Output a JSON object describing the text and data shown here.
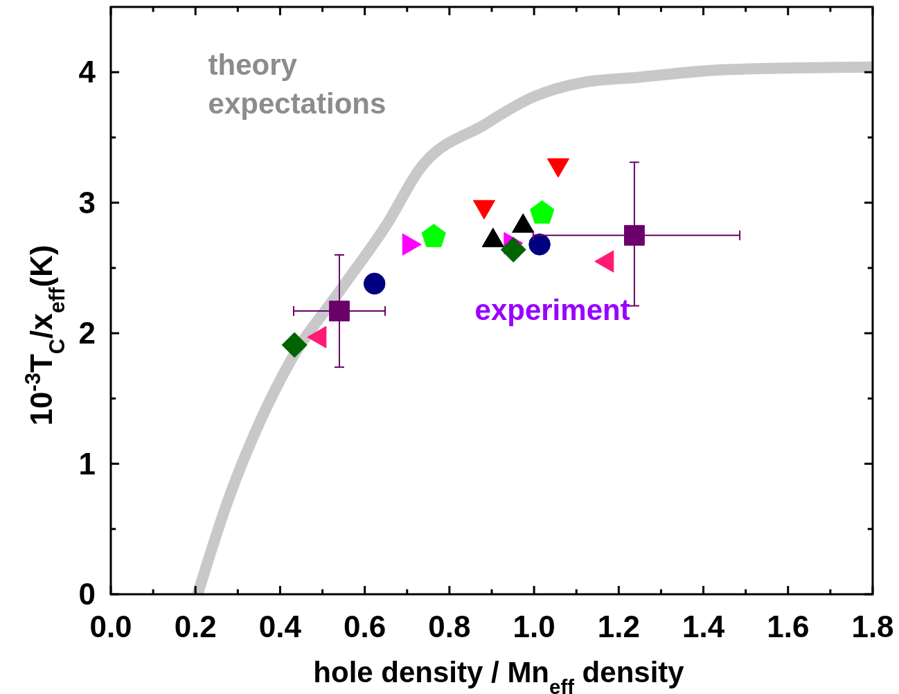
{
  "chart_data": {
    "type": "scatter",
    "xlabel": "hole density / Mn$_{eff}$ density",
    "ylabel": "10$^{-3}$T$_{C}$/x$_{eff}$(K)",
    "xlim": [
      0,
      1.8
    ],
    "ylim": [
      0,
      4.5
    ],
    "xticks": [
      {
        "value": 0,
        "label": "0.0"
      },
      {
        "value": 0.1,
        "label": null
      },
      {
        "value": 0.2,
        "label": "0.2"
      },
      {
        "value": 0.3,
        "label": null
      },
      {
        "value": 0.4,
        "label": "0.4"
      },
      {
        "value": 0.5,
        "label": null
      },
      {
        "value": 0.6,
        "label": "0.6"
      },
      {
        "value": 0.7,
        "label": null
      },
      {
        "value": 0.8,
        "label": "0.8"
      },
      {
        "value": 0.9,
        "label": null
      },
      {
        "value": 1,
        "label": "1.0"
      },
      {
        "value": 1.1,
        "label": null
      },
      {
        "value": 1.2,
        "label": "1.2"
      },
      {
        "value": 1.3,
        "label": null
      },
      {
        "value": 1.4,
        "label": "1.4"
      },
      {
        "value": 1.5,
        "label": null
      },
      {
        "value": 1.6,
        "label": "1.6"
      },
      {
        "value": 1.7,
        "label": null
      },
      {
        "value": 1.8,
        "label": "1.8"
      }
    ],
    "yticks": [
      0,
      {
        "value": 0.5,
        "label": null
      },
      1,
      {
        "value": 1.5,
        "label": null
      },
      2,
      {
        "value": 2.5,
        "label": null
      },
      3,
      {
        "value": 3.5,
        "label": null
      },
      4
    ],
    "grid": false,
    "annotations": [
      "theory\nexpectations",
      "experiment"
    ],
    "series": [
      {
        "type": "line",
        "color": "#c8c8c8",
        "marker": "none",
        "x": [
          0.205,
          0.278,
          0.352,
          0.425,
          0.54,
          0.655,
          0.728,
          0.884,
          0.998,
          1.113,
          1.244,
          1.456,
          1.8
        ],
        "values": [
          0,
          0.73,
          1.32,
          1.79,
          2.32,
          2.85,
          3.25,
          3.6,
          3.81,
          3.92,
          3.96,
          4.02,
          4.04
        ]
      },
      {
        "color": "#006400",
        "marker": "diamond",
        "x": [
          0.434
        ],
        "values": [
          1.91
        ]
      },
      {
        "color": "#ff1a75",
        "marker": "triangle-left",
        "x": [
          0.494
        ],
        "values": [
          1.97
        ]
      },
      {
        "color": "#6b006b",
        "marker": "square",
        "x": [
          0.54
        ],
        "values": [
          2.17
        ],
        "errors": [
          [
            1.74,
            2.6
          ]
        ],
        "xerrors": [
          [
            0.432,
            0.648
          ]
        ]
      },
      {
        "color": "#000080",
        "marker": "circle",
        "x": [
          0.623
        ],
        "values": [
          2.38
        ]
      },
      {
        "color": "#ff00ff",
        "marker": "triangle-right",
        "x": [
          0.704
        ],
        "values": [
          2.68
        ]
      },
      {
        "color": "#00ff00",
        "x": [
          0.763
        ],
        "values": [
          2.74
        ]
      },
      {
        "color": "#ff0000",
        "marker": "triangle-down",
        "x": [
          0.882
        ],
        "values": [
          2.97
        ]
      },
      {
        "color": "#000000",
        "marker": "triangle",
        "x": [
          0.903
        ],
        "values": [
          2.71
        ]
      },
      {
        "color": "#ff00ff",
        "marker": "triangle-right",
        "x": [
          0.944
        ],
        "values": [
          2.69
        ]
      },
      {
        "color": "#006400",
        "marker": "diamond",
        "x": [
          0.951
        ],
        "values": [
          2.64
        ]
      },
      {
        "color": "#000000",
        "marker": "triangle",
        "x": [
          0.974
        ],
        "values": [
          2.82
        ]
      },
      {
        "color": "#00ff00",
        "x": [
          1.019
        ],
        "values": [
          2.92
        ]
      },
      {
        "color": "#000080",
        "marker": "circle",
        "x": [
          1.013
        ],
        "values": [
          2.68
        ]
      },
      {
        "color": "#ff0000",
        "marker": "triangle-down",
        "x": [
          1.057
        ],
        "values": [
          3.29
        ]
      },
      {
        "color": "#6b006b",
        "marker": "square",
        "x": [
          1.237
        ],
        "values": [
          2.75
        ],
        "errors": [
          [
            2.21,
            3.31
          ]
        ],
        "xerrors": [
          [
            0.998,
            1.486
          ]
        ]
      },
      {
        "color": "#ff1a75",
        "marker": "triangle-left",
        "x": [
          1.173
        ],
        "values": [
          2.55
        ]
      }
    ]
  }
}
